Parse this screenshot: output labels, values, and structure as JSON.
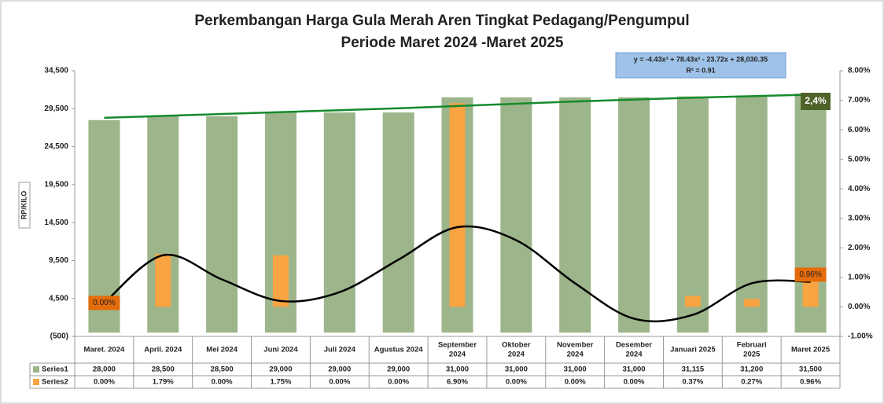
{
  "chart_data": {
    "type": "bar-line",
    "title": "Perkembangan Harga Gula Merah Aren Tingkat Pedagang/Pengumpul",
    "subtitle": "Periode Maret 2024 -Maret 2025",
    "ylabel": "RP/KILO",
    "categories": [
      [
        "Maret. 2024"
      ],
      [
        "April. 2024"
      ],
      [
        "Mei 2024"
      ],
      [
        "Juni 2024"
      ],
      [
        "Juli 2024"
      ],
      [
        "Agustus 2024"
      ],
      [
        "September",
        "2024"
      ],
      [
        "Oktober",
        "2024"
      ],
      [
        "November",
        "2024"
      ],
      [
        "Desember",
        "2024"
      ],
      [
        "Januari 2025"
      ],
      [
        "Februari",
        "2025"
      ],
      [
        "Maret 2025"
      ]
    ],
    "series": [
      {
        "name": "Series1",
        "color": "#9db58a",
        "axis": "y",
        "values": [
          28000,
          28500,
          28500,
          29000,
          29000,
          29000,
          31000,
          31000,
          31000,
          31000,
          31115,
          31200,
          31500
        ],
        "value_labels": [
          "28,000",
          "28,500",
          "28,500",
          "29,000",
          "29,000",
          "29,000",
          "31,000",
          "31,000",
          "31,000",
          "31,000",
          "31,115",
          "31,200",
          "31,500"
        ]
      },
      {
        "name": "Series2",
        "color": "#f8a443",
        "axis": "y2",
        "values": [
          0,
          1.79,
          0,
          1.75,
          0,
          0,
          6.9,
          0,
          0,
          0,
          0.37,
          0.27,
          0.96
        ],
        "value_labels": [
          "0.00%",
          "1.79%",
          "0.00%",
          "1.75%",
          "0.00%",
          "0.00%",
          "6.90%",
          "0.00%",
          "0.00%",
          "0.00%",
          "0.37%",
          "0.27%",
          "0.96%"
        ]
      }
    ],
    "data_labels": [
      {
        "series": 1,
        "index": 0
      },
      {
        "series": 1,
        "index": 12
      }
    ],
    "trendlines": [
      {
        "color": "#158a2c",
        "axis": "y",
        "values": [
          28300,
          28550,
          28800,
          29050,
          29300,
          29550,
          29850,
          30150,
          30450,
          30700,
          30950,
          31150,
          31350
        ]
      },
      {
        "color": "#000000",
        "axis": "y2",
        "values": [
          0.13,
          1.75,
          0.93,
          0.2,
          0.5,
          1.6,
          2.7,
          2.26,
          0.8,
          -0.4,
          -0.27,
          0.8,
          0.85
        ]
      }
    ],
    "equation": [
      "y = -4.43x³ + 78.43x² - 23.72x + 28,030.35",
      "R² = 0.91"
    ],
    "annotations": [
      "2,4%"
    ],
    "ylim": [
      -500,
      34500
    ],
    "yticks": [
      {
        "value": -500,
        "label": "(500)"
      },
      {
        "value": 4500,
        "label": "4,500"
      },
      {
        "value": 9500,
        "label": "9,500"
      },
      {
        "value": 14500,
        "label": "14,500"
      },
      {
        "value": 19500,
        "label": "19,500"
      },
      {
        "value": 24500,
        "label": "24,500"
      },
      {
        "value": 29500,
        "label": "29,500"
      },
      {
        "value": 34500,
        "label": "34,500"
      }
    ],
    "y2lim": [
      -1,
      8
    ],
    "y2ticks": [
      {
        "value": -1,
        "label": "-1.00%"
      },
      {
        "value": 0,
        "label": "0.00%"
      },
      {
        "value": 1,
        "label": "1.00%"
      },
      {
        "value": 2,
        "label": "2.00%"
      },
      {
        "value": 3,
        "label": "3.00%"
      },
      {
        "value": 4,
        "label": "4.00%"
      },
      {
        "value": 5,
        "label": "5.00%"
      },
      {
        "value": 6,
        "label": "6.00%"
      },
      {
        "value": 7,
        "label": "7.00%"
      },
      {
        "value": 8,
        "label": "8.00%"
      }
    ],
    "grid": false
  }
}
